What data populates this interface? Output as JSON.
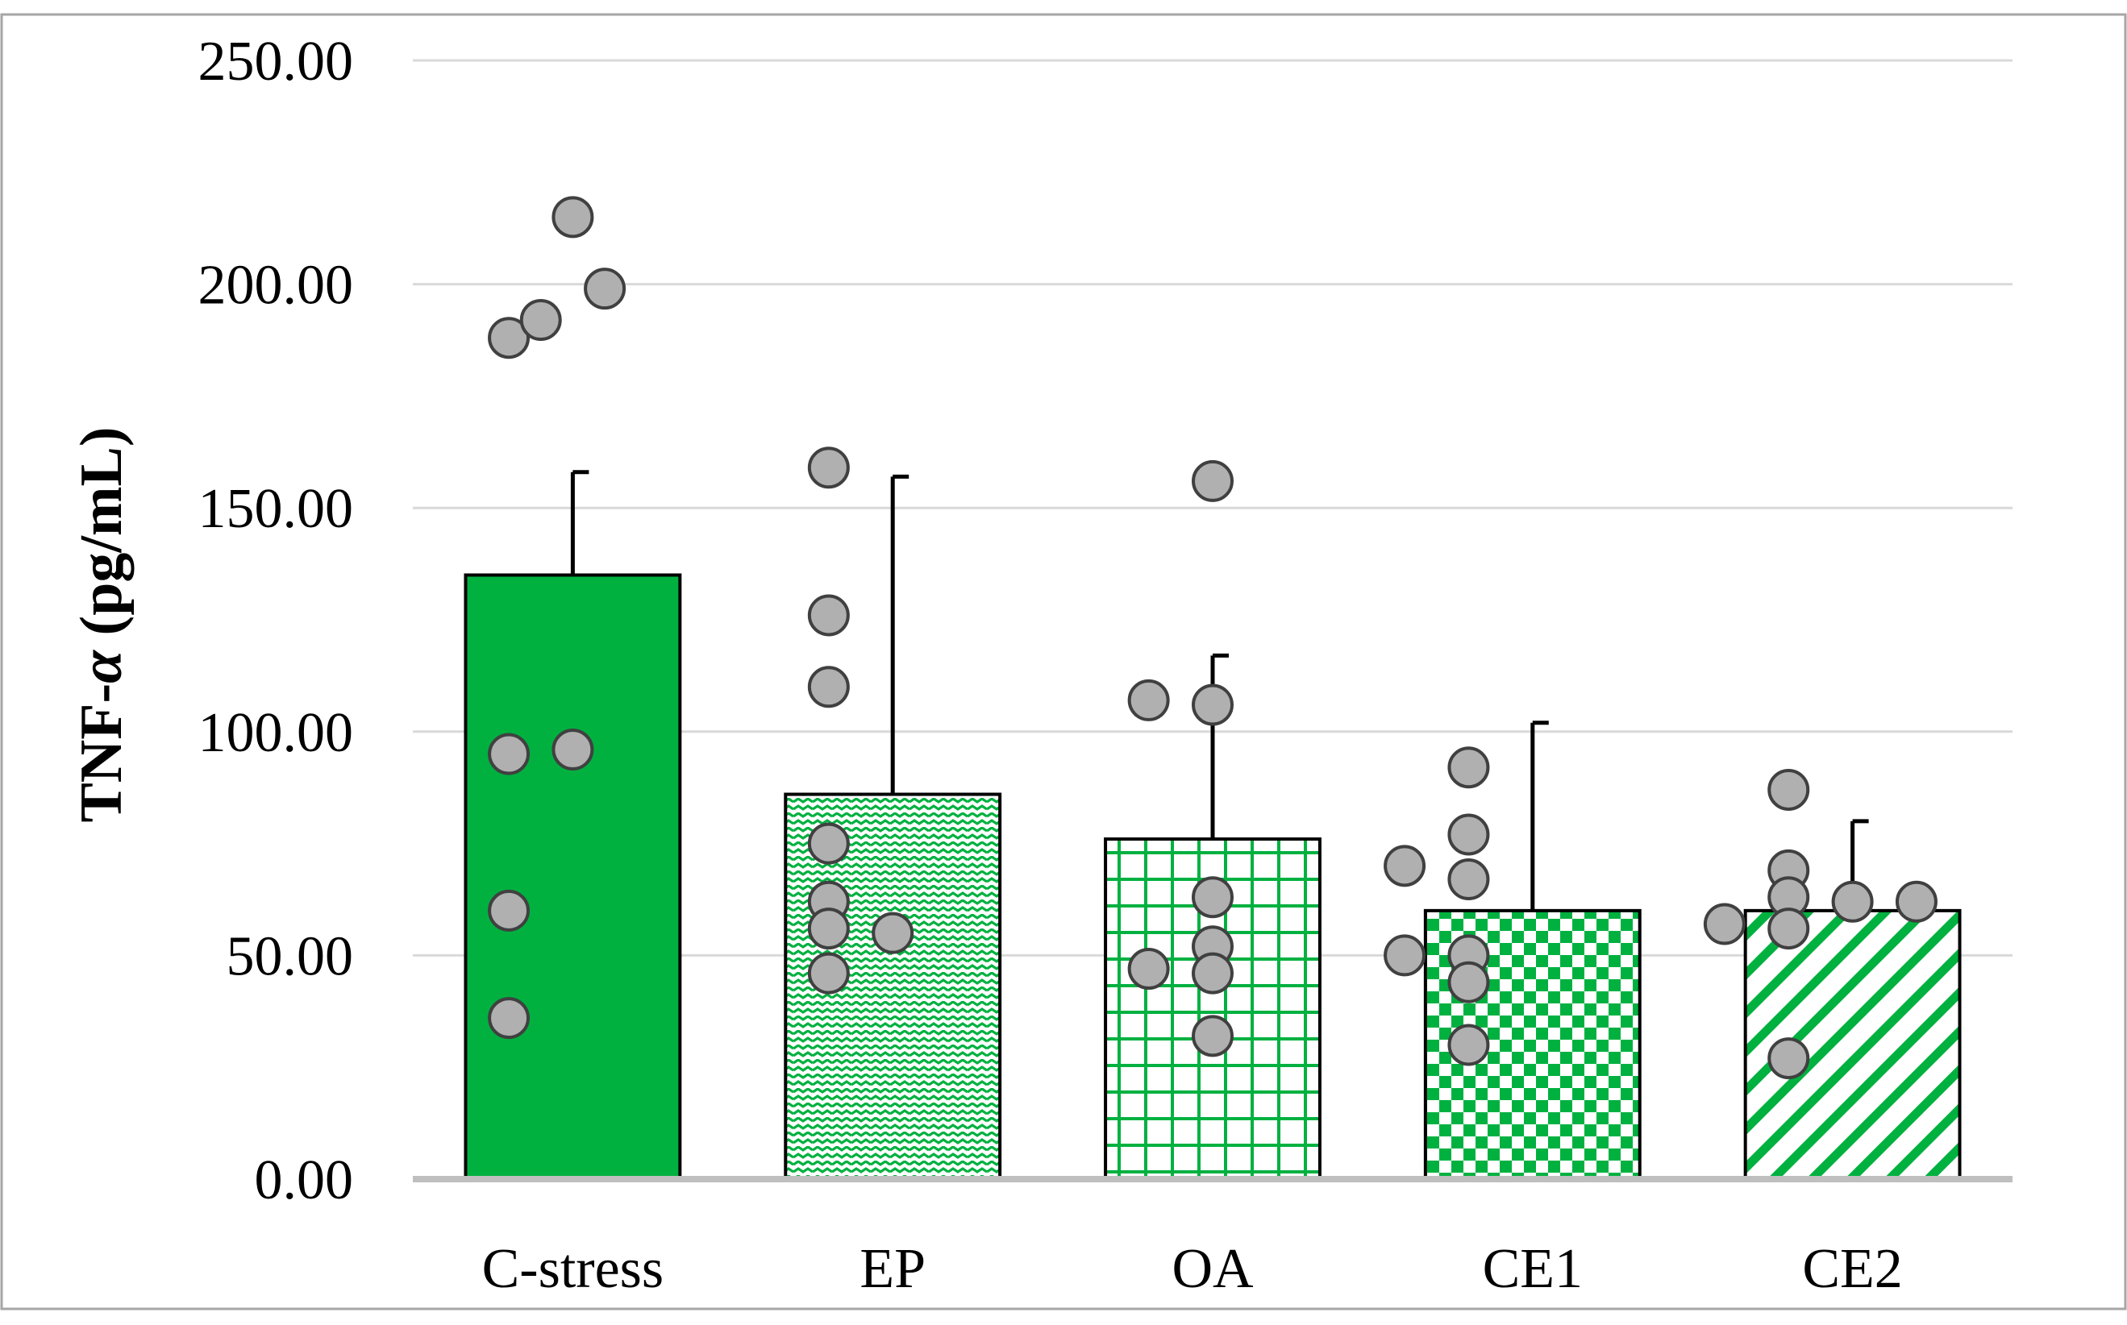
{
  "chart_data": {
    "type": "bar",
    "title": "",
    "xlabel": "",
    "ylabel_prefix": "TNF-",
    "ylabel_symbol": "α",
    "ylabel_suffix": " (pg/mL)",
    "ylim": [
      0,
      250
    ],
    "ytick_values": [
      0,
      50,
      100,
      150,
      200,
      250
    ],
    "ytick_labels": [
      "0.00",
      "50.00",
      "100.00",
      "150.00",
      "200.00",
      "250.00"
    ],
    "grid": true,
    "categories": [
      "C-stress",
      "EP",
      "OA",
      "CE1",
      "CE2"
    ],
    "values": [
      135,
      86,
      76,
      60,
      60
    ],
    "error_upper": [
      158,
      157,
      117,
      102,
      80
    ],
    "patterns": [
      "solid",
      "zigzag",
      "grid",
      "checker",
      "diagonal"
    ],
    "points": [
      [
        [
          -0.2,
          188
        ],
        [
          -0.1,
          192
        ],
        [
          0.0,
          215
        ],
        [
          0.1,
          199
        ],
        [
          -0.2,
          95
        ],
        [
          0.0,
          96
        ],
        [
          -0.2,
          60
        ],
        [
          -0.2,
          36
        ]
      ],
      [
        [
          -0.2,
          159
        ],
        [
          -0.2,
          126
        ],
        [
          -0.2,
          110
        ],
        [
          -0.2,
          75
        ],
        [
          -0.2,
          62
        ],
        [
          -0.2,
          56
        ],
        [
          0.0,
          55
        ],
        [
          -0.2,
          46
        ]
      ],
      [
        [
          0.0,
          156
        ],
        [
          -0.2,
          107
        ],
        [
          0.0,
          106
        ],
        [
          0.0,
          63
        ],
        [
          0.0,
          52
        ],
        [
          -0.2,
          47
        ],
        [
          0.0,
          46
        ],
        [
          0.0,
          32
        ]
      ],
      [
        [
          -0.2,
          92
        ],
        [
          -0.2,
          77
        ],
        [
          -0.4,
          70
        ],
        [
          -0.2,
          67
        ],
        [
          -0.4,
          50
        ],
        [
          -0.2,
          50
        ],
        [
          -0.2,
          44
        ],
        [
          -0.2,
          30
        ]
      ],
      [
        [
          -0.2,
          87
        ],
        [
          -0.2,
          69
        ],
        [
          -0.2,
          63
        ],
        [
          0.0,
          62
        ],
        [
          0.2,
          62
        ],
        [
          -0.4,
          57
        ],
        [
          -0.2,
          56
        ],
        [
          -0.2,
          27
        ]
      ]
    ]
  },
  "colors": {
    "accent": "#00b140",
    "grid": "#d9d9d9",
    "axis": "#bfbfbf",
    "frame": "#a6a6a6",
    "point_fill": "#b0b0b0",
    "point_stroke": "#404040"
  }
}
